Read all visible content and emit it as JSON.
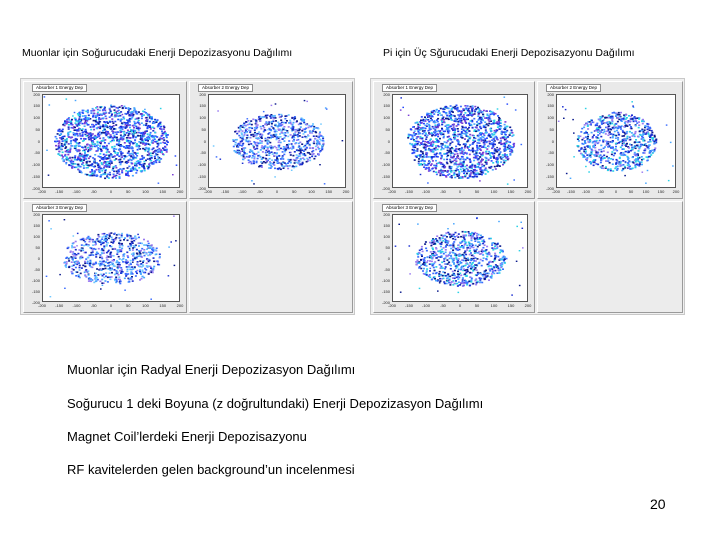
{
  "captions": {
    "left": "Muonlar için Soğurucudaki Enerji Depozizasyonu Dağılımı",
    "right": "Pi için Üç Sğurucudaki Enerji Depozisazyonu Dağılımı"
  },
  "plot_title_text": "Absorber 1 Energy Dep",
  "panels": [
    {
      "id": "m1",
      "title": "Absorber 1 Energy Dep",
      "density": 1.0,
      "rx": 0.42,
      "ry": 0.4,
      "palette": [
        "#1b2fd1",
        "#2347ff",
        "#3a6cff",
        "#48a6ff",
        "#2ad1e6",
        "#7a3fd6",
        "#0a1a8c"
      ]
    },
    {
      "id": "m2",
      "title": "Absorber 2 Energy Dep",
      "density": 0.55,
      "rx": 0.34,
      "ry": 0.3,
      "palette": [
        "#1b2fd1",
        "#3a6cff",
        "#48a6ff",
        "#6fc8ff",
        "#9a7af0",
        "#0a1a8c"
      ]
    },
    {
      "id": "m3",
      "title": "Absorber 3 Energy Dep",
      "density": 0.45,
      "rx": 0.36,
      "ry": 0.3,
      "palette": [
        "#1b2fd1",
        "#3a6cff",
        "#48a6ff",
        "#6fc8ff",
        "#9a7af0",
        "#0a1a8c"
      ]
    },
    {
      "id": "p1",
      "title": "Absorber 1 Energy Dep",
      "density": 0.95,
      "rx": 0.4,
      "ry": 0.4,
      "palette": [
        "#1b2fd1",
        "#2347ff",
        "#3a6cff",
        "#48a6ff",
        "#2ad1e6",
        "#7a3fd6",
        "#0a1a8c"
      ]
    },
    {
      "id": "p2",
      "title": "Absorber 2 Energy Dep",
      "density": 0.5,
      "rx": 0.34,
      "ry": 0.32,
      "palette": [
        "#1b2fd1",
        "#3a6cff",
        "#48a6ff",
        "#2ad1e6",
        "#9a7af0",
        "#0a1a8c"
      ]
    },
    {
      "id": "p3",
      "title": "Absorber 3 Energy Dep",
      "density": 0.5,
      "rx": 0.34,
      "ry": 0.32,
      "palette": [
        "#1b2fd1",
        "#3a6cff",
        "#48a6ff",
        "#2ad1e6",
        "#9a7af0",
        "#0a1a8c"
      ]
    }
  ],
  "y_ticks": [
    "200",
    "150",
    "100",
    "50",
    "0",
    "-50",
    "-100",
    "-150",
    "-200"
  ],
  "x_ticks": [
    "-200",
    "-150",
    "-100",
    "-50",
    "0",
    "50",
    "100",
    "150",
    "200"
  ],
  "bullets": [
    "Muonlar için Radyal Enerji Depozizasyon Dağılımı",
    "Soğurucu 1 deki Boyuna (z doğrultundaki) Enerji Depozizasyon Dağılımı",
    "Magnet Coil’lerdeki Enerji Depozisazyonu",
    "RF kavitelerden gelen background’un incelenmesi"
  ],
  "page_number": "20"
}
